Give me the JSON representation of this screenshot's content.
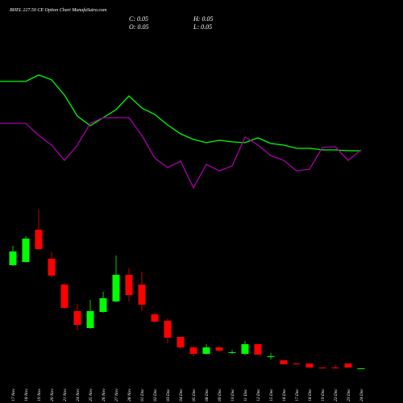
{
  "chart_data": {
    "type": "candlestick",
    "title": "BHEL 227.50 CE Option Chart MunafaSutra.com",
    "ohlc_labels": [
      "C: 0.05",
      "H: 0.05",
      "O: 0.05",
      "L: 0.05"
    ],
    "categories": [
      "17 Nov",
      "18 Nov",
      "19 Nov",
      "20 Nov",
      "21 Nov",
      "24 Nov",
      "25 Nov",
      "26 Nov",
      "27 Nov",
      "28 Nov",
      "01 Dec",
      "02 Dec",
      "03 Dec",
      "04 Dec",
      "05 Dec",
      "08 Dec",
      "09 Dec",
      "10 Dec",
      "11 Dec",
      "12 Dec",
      "15 Dec",
      "16 Dec",
      "17 Dec",
      "18 Dec",
      "19 Dec",
      "22 Dec",
      "23 Dec",
      "24 Dec"
    ],
    "open": [
      6.45,
      6.65,
      8.65,
      6.85,
      5.25,
      3.6,
      2.55,
      3.55,
      4.2,
      5.85,
      5.25,
      3.4,
      3.0,
      2.0,
      1.35,
      0.95,
      1.35,
      1.0,
      0.95,
      1.55,
      0.75,
      0.55,
      0.35,
      0.35,
      0.1,
      0.1,
      0.35,
      0.05
    ],
    "high": [
      7.65,
      8.25,
      9.9,
      7.25,
      5.3,
      4.05,
      4.3,
      4.8,
      7.05,
      6.25,
      6.05,
      3.5,
      3.15,
      2.0,
      1.4,
      1.55,
      1.45,
      1.2,
      1.75,
      1.55,
      1.0,
      0.55,
      0.35,
      0.35,
      0.1,
      0.25,
      0.35,
      0.05
    ],
    "low": [
      6.4,
      6.6,
      7.4,
      5.7,
      3.75,
      2.4,
      2.5,
      3.5,
      4.15,
      4.2,
      3.6,
      2.9,
      1.6,
      1.25,
      0.8,
      0.9,
      1.1,
      0.95,
      0.85,
      0.9,
      0.6,
      0.3,
      0.3,
      0.1,
      0.05,
      0.05,
      0.1,
      0.05
    ],
    "close": [
      7.3,
      8.1,
      7.45,
      5.8,
      3.8,
      2.75,
      3.6,
      4.4,
      5.85,
      4.6,
      4.0,
      2.95,
      1.95,
      1.35,
      0.95,
      1.35,
      1.15,
      1.05,
      1.55,
      0.9,
      0.8,
      0.3,
      0.3,
      0.1,
      0.05,
      0.05,
      0.1,
      0.05
    ],
    "up_color": "#00ff00",
    "down_color": "#ff0000",
    "ylim": [
      0,
      10
    ],
    "lines": [
      {
        "color": "#00ff00",
        "values": [
          199,
          199,
          207,
          201,
          182,
          156,
          144,
          154,
          164,
          181,
          166,
          158,
          145,
          134,
          127,
          123,
          126,
          124,
          123,
          129,
          122,
          120,
          116,
          116,
          114,
          114,
          113,
          113
        ]
      },
      {
        "color": "#aa00aa",
        "values": [
          147,
          147,
          132,
          120,
          101,
          120,
          147,
          154,
          154,
          154,
          132,
          104,
          92,
          100,
          67,
          96,
          88,
          94,
          130,
          120,
          107,
          101,
          88,
          90,
          117,
          118,
          101,
          114
        ]
      }
    ],
    "lines_ylim": [
      0,
      300
    ]
  }
}
